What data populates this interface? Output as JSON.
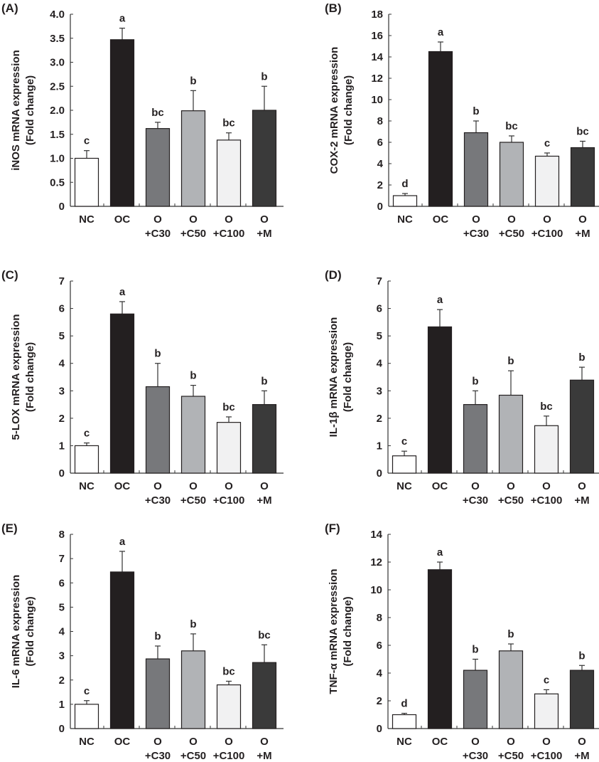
{
  "categories": [
    [
      "NC",
      ""
    ],
    [
      "OC",
      ""
    ],
    [
      "O",
      "+C30"
    ],
    [
      "O",
      "+C50"
    ],
    [
      "O",
      "+C100"
    ],
    [
      "O",
      "+M"
    ]
  ],
  "bar_colors": [
    "#ffffff",
    "#231f20",
    "#77787b",
    "#b1b3b6",
    "#f1f1f2",
    "#3a3a3a"
  ],
  "chart_data": [
    {
      "panel": "(A)",
      "type": "bar",
      "ylabel": [
        "iNOS mRNA expression",
        "(Fold change)"
      ],
      "ylim": [
        0,
        4.0
      ],
      "yticks": [
        "0",
        "0.5",
        "1.0",
        "1.5",
        "2.0",
        "2.5",
        "3.0",
        "3.5",
        "4.0"
      ],
      "ytick_values": [
        0,
        0.5,
        1,
        1.5,
        2,
        2.5,
        3,
        3.5,
        4
      ],
      "values": [
        1.0,
        3.47,
        1.62,
        1.99,
        1.38,
        2.0
      ],
      "errors": [
        0.16,
        0.24,
        0.13,
        0.42,
        0.15,
        0.5
      ],
      "letters": [
        "c",
        "a",
        "bc",
        "b",
        "bc",
        "b"
      ]
    },
    {
      "panel": "(B)",
      "type": "bar",
      "ylabel": [
        "COX-2 mRNA expression",
        "(Fold change)"
      ],
      "ylim": [
        0,
        18
      ],
      "yticks": [
        "0",
        "2",
        "4",
        "6",
        "8",
        "10",
        "12",
        "14",
        "16",
        "18"
      ],
      "ytick_values": [
        0,
        2,
        4,
        6,
        8,
        10,
        12,
        14,
        16,
        18
      ],
      "values": [
        1.0,
        14.5,
        6.9,
        6.0,
        4.7,
        5.5
      ],
      "errors": [
        0.2,
        0.9,
        1.1,
        0.6,
        0.3,
        0.6
      ],
      "letters": [
        "d",
        "a",
        "b",
        "bc",
        "c",
        "bc"
      ]
    },
    {
      "panel": "(C)",
      "type": "bar",
      "ylabel": [
        "5-LOX mRNA expression",
        "(Fold change)"
      ],
      "ylim": [
        0,
        7
      ],
      "yticks": [
        "0",
        "1",
        "2",
        "3",
        "4",
        "5",
        "6",
        "7"
      ],
      "ytick_values": [
        0,
        1,
        2,
        3,
        4,
        5,
        6,
        7
      ],
      "values": [
        1.0,
        5.8,
        3.15,
        2.8,
        1.85,
        2.5
      ],
      "errors": [
        0.1,
        0.45,
        0.85,
        0.4,
        0.2,
        0.5
      ],
      "letters": [
        "c",
        "a",
        "b",
        "b",
        "bc",
        "b"
      ]
    },
    {
      "panel": "(D)",
      "type": "bar",
      "ylabel": [
        "IL-1β mRNA expression",
        "(Fold change)"
      ],
      "ylim": [
        0,
        7
      ],
      "yticks": [
        "0",
        "1",
        "2",
        "3",
        "4",
        "5",
        "6",
        "7"
      ],
      "ytick_values": [
        0,
        1,
        2,
        3,
        4,
        5,
        6,
        7
      ],
      "values": [
        0.63,
        5.33,
        2.5,
        2.84,
        1.73,
        3.39
      ],
      "errors": [
        0.17,
        0.63,
        0.5,
        0.89,
        0.35,
        0.47
      ],
      "letters": [
        "c",
        "a",
        "b",
        "b",
        "bc",
        "b"
      ]
    },
    {
      "panel": "(E)",
      "type": "bar",
      "ylabel": [
        "IL-6 mRNA expression",
        "(Fold change)"
      ],
      "ylim": [
        0,
        8
      ],
      "yticks": [
        "0",
        "1",
        "2",
        "3",
        "4",
        "5",
        "6",
        "7",
        "8"
      ],
      "ytick_values": [
        0,
        1,
        2,
        3,
        4,
        5,
        6,
        7,
        8
      ],
      "values": [
        1.0,
        6.45,
        2.87,
        3.2,
        1.8,
        2.72
      ],
      "errors": [
        0.15,
        0.85,
        0.53,
        0.7,
        0.15,
        0.73
      ],
      "letters": [
        "c",
        "a",
        "b",
        "b",
        "bc",
        "bc"
      ]
    },
    {
      "panel": "(F)",
      "type": "bar",
      "ylabel": [
        "TNF-α mRNA expression",
        "(Fold change)"
      ],
      "ylim": [
        0,
        14
      ],
      "yticks": [
        "0",
        "2",
        "4",
        "6",
        "8",
        "10",
        "12",
        "14"
      ],
      "ytick_values": [
        0,
        2,
        4,
        6,
        8,
        10,
        12,
        14
      ],
      "values": [
        1.0,
        11.45,
        4.2,
        5.6,
        2.5,
        4.2
      ],
      "errors": [
        0.1,
        0.55,
        0.8,
        0.5,
        0.3,
        0.35
      ],
      "letters": [
        "d",
        "a",
        "b",
        "b",
        "c",
        "b"
      ]
    }
  ]
}
